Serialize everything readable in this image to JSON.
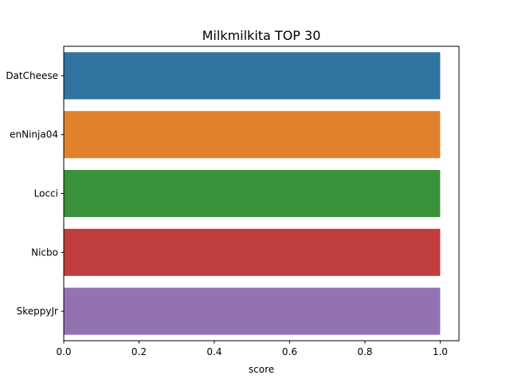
{
  "chart_data": {
    "type": "bar",
    "orientation": "horizontal",
    "title": "Milkmilkita TOP 30",
    "xlabel": "score",
    "ylabel": "",
    "categories": [
      "DatCheese",
      "enNinja04",
      "Locci",
      "Nicbo",
      "SkeppyJr"
    ],
    "values": [
      1.0,
      1.0,
      1.0,
      1.0,
      1.0
    ],
    "colors": [
      "#3274a1",
      "#e1812c",
      "#3a923a",
      "#c03d3e",
      "#9372b2"
    ],
    "xlim": [
      0,
      1.05
    ],
    "xticks": [
      "0.0",
      "0.2",
      "0.4",
      "0.6",
      "0.8",
      "1.0"
    ],
    "grid": false,
    "legend": "none"
  }
}
